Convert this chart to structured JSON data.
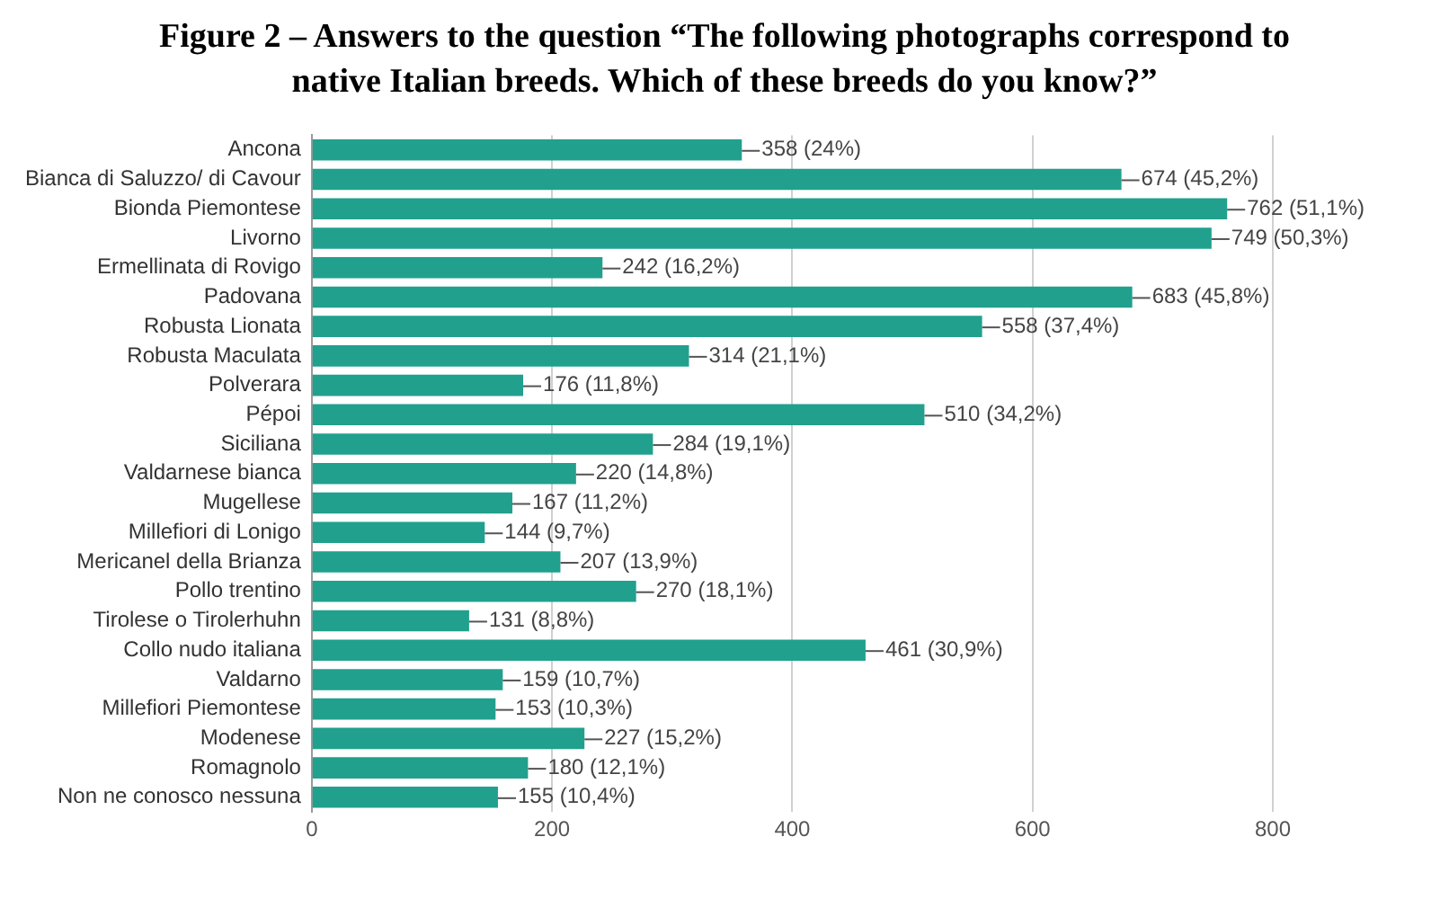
{
  "chart_data": {
    "type": "bar",
    "orientation": "horizontal",
    "title": "Figure 2 – Answers to the question “The following photographs correspond to native Italian breeds. Which of these breeds do you know?”",
    "categories": [
      "Ancona",
      "Bianca di Saluzzo/ di Cavour",
      "Bionda Piemontese",
      "Livorno",
      "Ermellinata di Rovigo",
      "Padovana",
      "Robusta Lionata",
      "Robusta Maculata",
      "Polverara",
      "Pépoi",
      "Siciliana",
      "Valdarnese bianca",
      "Mugellese",
      "Millefiori di Lonigo",
      "Mericanel della Brianza",
      "Pollo trentino",
      "Tirolese o Tirolerhuhn",
      "Collo nudo italiana",
      "Valdarno",
      "Millefiori Piemontese",
      "Modenese",
      "Romagnolo",
      "Non ne conosco nessuna"
    ],
    "values": [
      358,
      674,
      762,
      749,
      242,
      683,
      558,
      314,
      176,
      510,
      284,
      220,
      167,
      144,
      207,
      270,
      131,
      461,
      159,
      153,
      227,
      180,
      155
    ],
    "value_labels": [
      "358 (24%)",
      "674 (45,2%)",
      "762 (51,1%)",
      "749 (50,3%)",
      "242 (16,2%)",
      "683 (45,8%)",
      "558 (37,4%)",
      "314 (21,1%)",
      "176 (11,8%)",
      "510 (34,2%)",
      "284 (19,1%)",
      "220 (14,8%)",
      "167 (11,2%)",
      "144 (9,7%)",
      "207 (13,9%)",
      "270 (18,1%)",
      "131 (8,8%)",
      "461 (30,9%)",
      "159 (10,7%)",
      "153 (10,3%)",
      "227 (15,2%)",
      "180 (12,1%)",
      "155 (10,4%)"
    ],
    "color": "#21a08e",
    "xlim": [
      0,
      800
    ],
    "xticks": [
      0,
      200,
      400,
      600,
      800
    ],
    "grid": "x",
    "legend": false
  }
}
